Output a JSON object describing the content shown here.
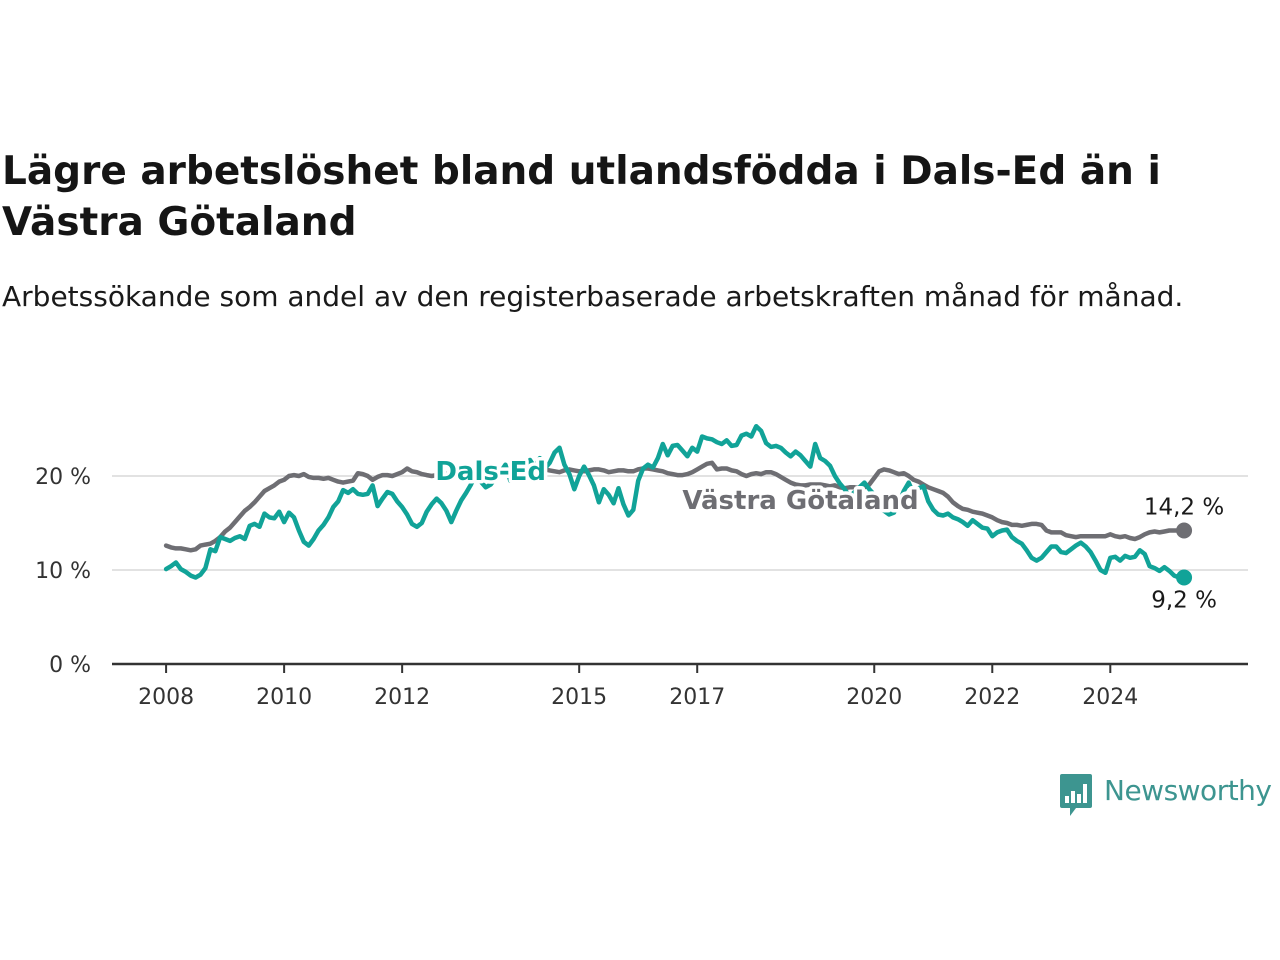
{
  "header": {
    "title": "Lägre arbetslöshet bland utlandsfödda i Dals-Ed än i Västra Götaland",
    "subtitle": "Arbetssökande som andel av den registerbaserade arbetskraften månad för månad."
  },
  "brand": {
    "name": "Newsworthy",
    "color": "#3d9590"
  },
  "chart_data": {
    "type": "line",
    "title": "Lägre arbetslöshet bland utlandsfödda i Dals-Ed än i Västra Götaland",
    "subtitle": "Arbetssökande som andel av den registerbaserade arbetskraften månad för månad.",
    "x_start": "2008-01",
    "x_end": "2025-02",
    "xlim": [
      "2007-02",
      "2026-05"
    ],
    "x_ticks": [
      "2008",
      "2010",
      "2012",
      "2015",
      "2017",
      "2020",
      "2022",
      "2024"
    ],
    "x_tick_positions": [
      "2008-01",
      "2010-01",
      "2012-01",
      "2015-01",
      "2017-01",
      "2020-01",
      "2022-01",
      "2024-01"
    ],
    "ylim": [
      0,
      20
    ],
    "y_ticks": [
      0,
      10,
      20
    ],
    "y_tick_labels": [
      "0 %",
      "10 %",
      "20 %"
    ],
    "grid": "horizontal",
    "legend": "inline labels",
    "series": [
      {
        "name": "Dals-Ed",
        "color": "#11a398",
        "end_label": "9,2 %",
        "values": [
          10.1,
          10.4,
          10.8,
          10.1,
          9.8,
          9.4,
          9.2,
          9.5,
          10.2,
          12.2,
          12.0,
          13.5,
          13.3,
          13.1,
          13.4,
          13.6,
          13.3,
          14.7,
          14.9,
          14.6,
          16.0,
          15.6,
          15.5,
          16.2,
          15.1,
          16.1,
          15.6,
          14.2,
          13.0,
          12.6,
          13.3,
          14.2,
          14.8,
          15.6,
          16.7,
          17.3,
          18.5,
          18.2,
          18.6,
          18.1,
          18.0,
          18.1,
          19.0,
          16.8,
          17.6,
          18.3,
          18.1,
          17.3,
          16.7,
          15.9,
          14.9,
          14.6,
          15.0,
          16.2,
          17.0,
          17.6,
          17.1,
          16.3,
          15.1,
          16.3,
          17.4,
          18.2,
          19.1,
          20.3,
          19.4,
          18.8,
          19.1,
          19.8,
          20.4,
          21.2,
          19.5,
          20.6,
          21.0,
          20.5,
          21.7,
          20.9,
          21.9,
          20.8,
          21.4,
          22.5,
          23.0,
          21.2,
          20.2,
          18.6,
          20.0,
          21.0,
          20.1,
          19.0,
          17.2,
          18.6,
          18.0,
          17.1,
          18.7,
          17.0,
          15.8,
          16.4,
          19.5,
          20.8,
          21.2,
          20.9,
          21.9,
          23.4,
          22.2,
          23.2,
          23.3,
          22.7,
          22.1,
          23.0,
          22.6,
          24.2,
          24.0,
          23.9,
          23.6,
          23.4,
          23.8,
          23.2,
          23.3,
          24.3,
          24.5,
          24.2,
          25.3,
          24.8,
          23.5,
          23.1,
          23.2,
          23.0,
          22.5,
          22.1,
          22.6,
          22.2,
          21.6,
          21.0,
          23.4,
          21.9,
          21.6,
          21.1,
          20.0,
          19.2,
          18.6,
          17.8,
          18.3,
          18.8,
          19.3,
          18.6,
          18.0,
          16.7,
          16.3,
          15.9,
          16.1,
          17.1,
          18.4,
          19.3,
          18.1,
          18.7,
          18.9,
          17.3,
          16.4,
          15.9,
          15.8,
          16.0,
          15.6,
          15.4,
          15.1,
          14.7,
          15.3,
          14.9,
          14.5,
          14.4,
          13.6,
          14.0,
          14.2,
          14.3,
          13.5,
          13.1,
          12.8,
          12.1,
          11.3,
          11.0,
          11.3,
          11.9,
          12.5,
          12.5,
          11.9,
          11.8,
          12.2,
          12.6,
          12.9,
          12.5,
          11.9,
          11.0,
          10.0,
          9.7,
          11.3,
          11.4,
          11.0,
          11.5,
          11.3,
          11.4,
          12.1,
          11.7,
          10.4,
          10.2,
          9.9,
          10.3,
          9.9,
          9.4,
          9.2,
          9.2
        ]
      },
      {
        "name": "Västra Götaland",
        "color": "#6e6e73",
        "end_label": "14,2 %",
        "values": [
          12.6,
          12.4,
          12.3,
          12.3,
          12.2,
          12.1,
          12.2,
          12.6,
          12.7,
          12.8,
          13.1,
          13.5,
          14.1,
          14.5,
          15.1,
          15.7,
          16.3,
          16.7,
          17.2,
          17.8,
          18.4,
          18.7,
          19.0,
          19.4,
          19.6,
          20.0,
          20.1,
          20.0,
          20.2,
          19.9,
          19.8,
          19.8,
          19.7,
          19.8,
          19.6,
          19.4,
          19.3,
          19.4,
          19.5,
          20.3,
          20.2,
          20.0,
          19.6,
          19.9,
          20.1,
          20.1,
          20.0,
          20.2,
          20.4,
          20.8,
          20.5,
          20.4,
          20.2,
          20.1,
          20.0,
          20.1,
          20.0,
          20.2,
          20.4,
          20.6,
          20.7,
          20.8,
          20.6,
          20.4,
          20.4,
          20.3,
          20.5,
          20.5,
          20.4,
          20.6,
          20.7,
          20.6,
          20.5,
          20.6,
          20.7,
          20.6,
          20.8,
          20.7,
          20.6,
          20.5,
          20.4,
          20.6,
          20.7,
          20.6,
          20.5,
          20.5,
          20.6,
          20.7,
          20.7,
          20.6,
          20.4,
          20.5,
          20.6,
          20.6,
          20.5,
          20.5,
          20.7,
          20.8,
          20.8,
          20.7,
          20.6,
          20.5,
          20.3,
          20.2,
          20.1,
          20.1,
          20.2,
          20.4,
          20.7,
          21.0,
          21.3,
          21.4,
          20.7,
          20.8,
          20.8,
          20.6,
          20.5,
          20.2,
          20.0,
          20.2,
          20.3,
          20.2,
          20.4,
          20.4,
          20.2,
          19.9,
          19.6,
          19.3,
          19.1,
          19.0,
          19.0,
          19.1,
          19.1,
          19.1,
          19.0,
          18.9,
          19.0,
          18.8,
          18.7,
          18.8,
          18.8,
          18.7,
          18.8,
          19.1,
          19.8,
          20.5,
          20.7,
          20.6,
          20.4,
          20.2,
          20.3,
          20.0,
          19.6,
          19.4,
          19.1,
          18.8,
          18.6,
          18.4,
          18.2,
          17.8,
          17.2,
          16.8,
          16.5,
          16.4,
          16.2,
          16.1,
          16.0,
          15.8,
          15.6,
          15.3,
          15.1,
          15.0,
          14.8,
          14.8,
          14.7,
          14.8,
          14.9,
          14.9,
          14.8,
          14.2,
          14.0,
          14.0,
          14.0,
          13.7,
          13.6,
          13.5,
          13.6,
          13.6,
          13.6,
          13.6,
          13.6,
          13.6,
          13.8,
          13.6,
          13.5,
          13.6,
          13.4,
          13.3,
          13.5,
          13.8,
          14.0,
          14.1,
          14.0,
          14.1,
          14.2,
          14.2,
          14.2,
          14.2
        ]
      }
    ]
  }
}
